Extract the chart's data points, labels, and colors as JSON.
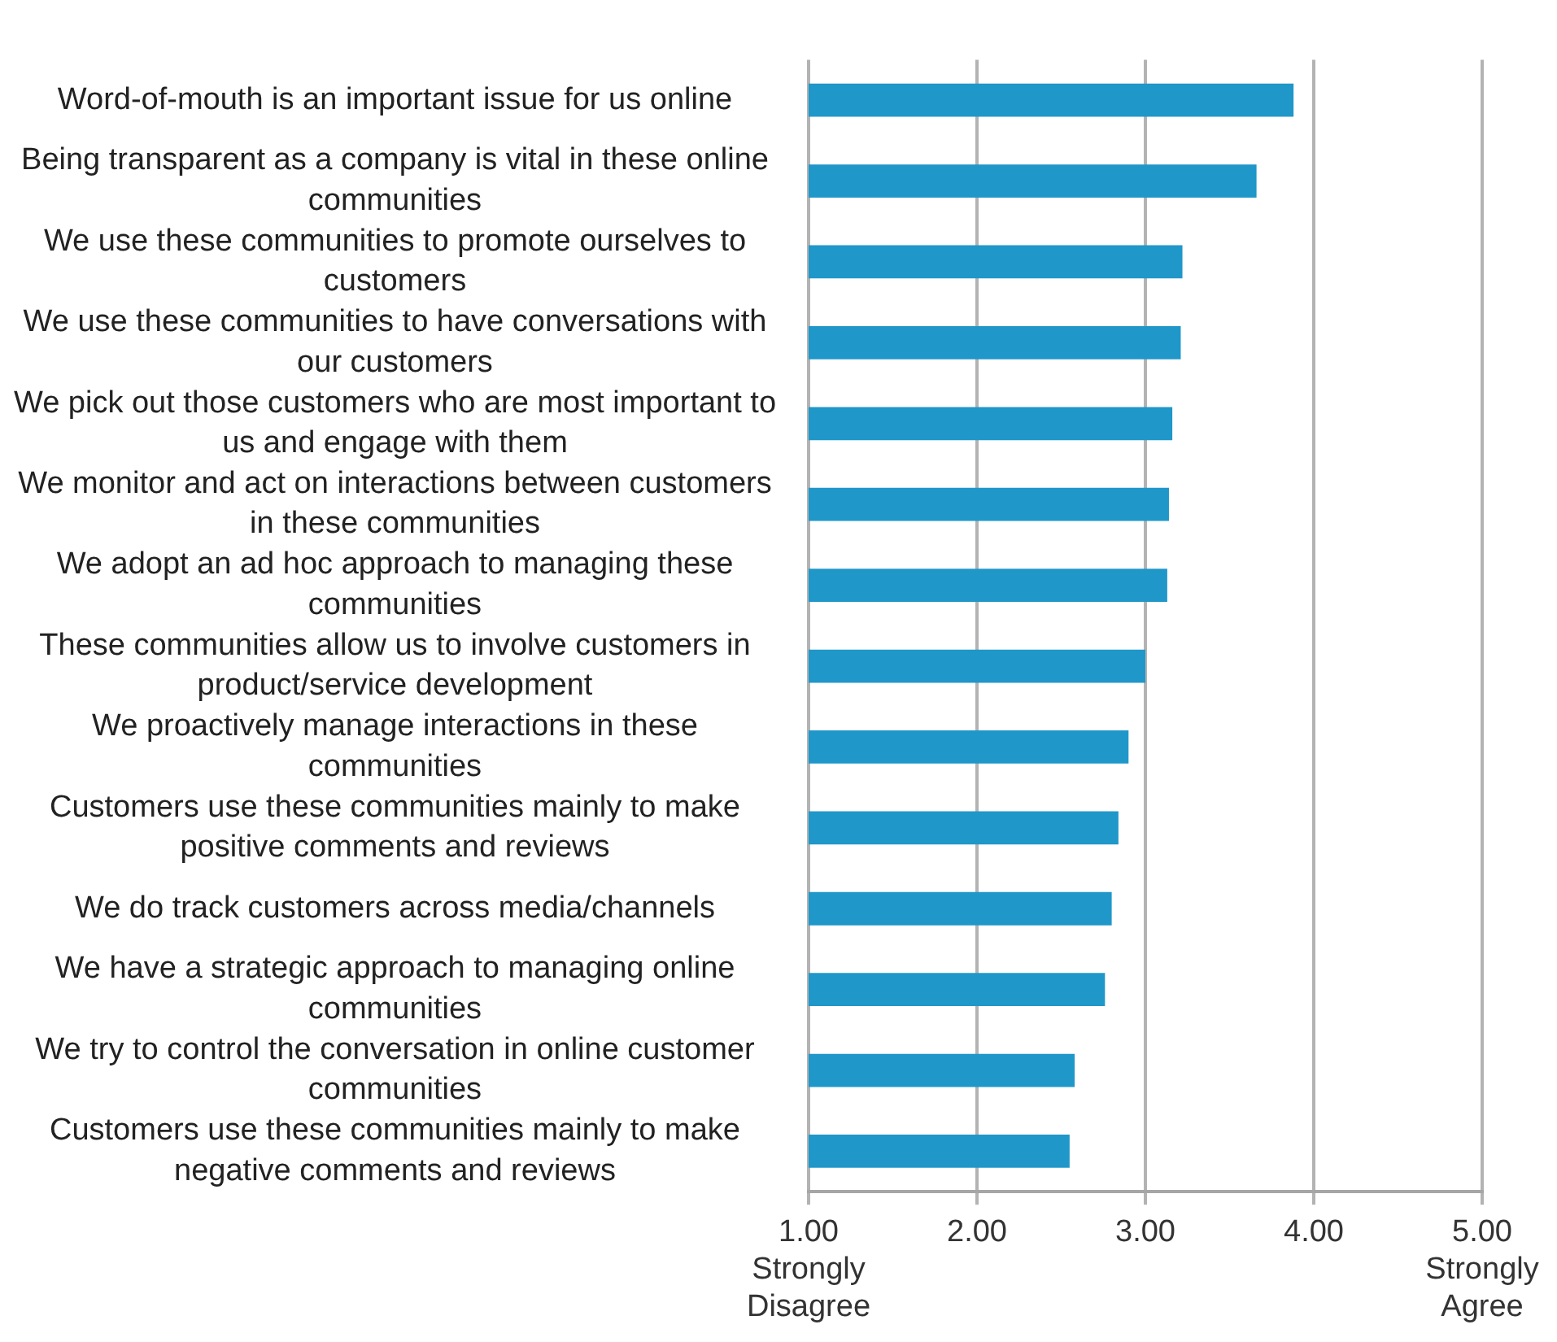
{
  "chart_data": {
    "type": "bar",
    "orientation": "horizontal",
    "categories": [
      "Word-of-mouth is an important issue for us online",
      "Being transparent as a company is vital in these online communities",
      "We use these communities to promote ourselves to customers",
      "We use these communities to have conversations with our customers",
      "We pick out those customers who are most important to us and engage with them",
      "We monitor and act on interactions between customers in these communities",
      "We adopt an ad hoc approach to managing these communities",
      "These communities allow us to involve customers in product/service development",
      "We proactively manage interactions in these communities",
      "Customers use these communities mainly to make positive comments and reviews",
      "We do track customers across media/channels",
      "We have a strategic approach to managing online communities",
      "We try to control the conversation in online customer communities",
      "Customers use these communities mainly to make negative comments and reviews"
    ],
    "values": [
      3.88,
      3.66,
      3.22,
      3.21,
      3.16,
      3.14,
      3.13,
      3.0,
      2.9,
      2.84,
      2.8,
      2.76,
      2.58,
      2.55
    ],
    "color": "#1f97c9",
    "xlim": [
      1,
      5
    ],
    "xticks": [
      {
        "value": 1,
        "label": "1.00\nStrongly\nDisagree"
      },
      {
        "value": 2,
        "label": "2.00"
      },
      {
        "value": 3,
        "label": "3.00"
      },
      {
        "value": 4,
        "label": "4.00"
      },
      {
        "value": 5,
        "label": "5.00\nStrongly\nAgree"
      }
    ],
    "grid": "x",
    "legend": false
  }
}
